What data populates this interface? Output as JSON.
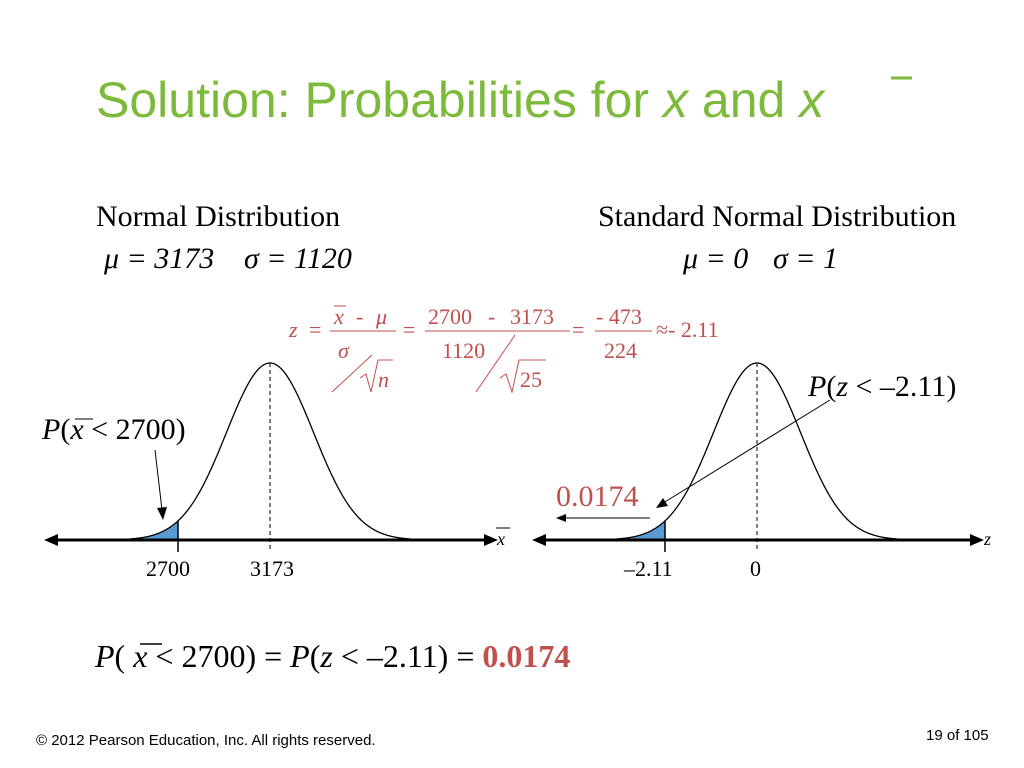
{
  "title": {
    "lead": "Solution: Probabilities for",
    "var1": "x",
    "conj": "and",
    "var2": "x"
  },
  "left": {
    "heading": "Normal Distribution",
    "mu": "μ = 3173",
    "sigma": "σ = 1120",
    "label": [
      "P",
      "(",
      "x",
      " < 2700)"
    ],
    "ticks": [
      "2700",
      "3173"
    ],
    "axis": "x"
  },
  "right": {
    "heading": "Standard Normal Distribution",
    "mu": "μ = 0",
    "sigma": "σ = 1",
    "label": [
      "P",
      "(",
      "z",
      " < –2.11)"
    ],
    "area": "0.0174",
    "ticks": [
      "–2.11",
      "0"
    ],
    "axis": "z"
  },
  "formula": [
    "z",
    "=",
    "x",
    "-",
    "μ",
    "σ",
    "n",
    "=",
    "2700",
    "-",
    "3173",
    "1120",
    "25",
    "=",
    "- 473",
    "224",
    "≈- 2.11"
  ],
  "result": [
    "P",
    "( ",
    "x",
    " < 2700) = ",
    "P",
    "(",
    "z",
    " < –2.11) = ",
    "0.0174"
  ],
  "footer": {
    "copyright": "© 2012 Pearson Education, Inc. All rights reserved.",
    "page": "19 of 105"
  }
}
